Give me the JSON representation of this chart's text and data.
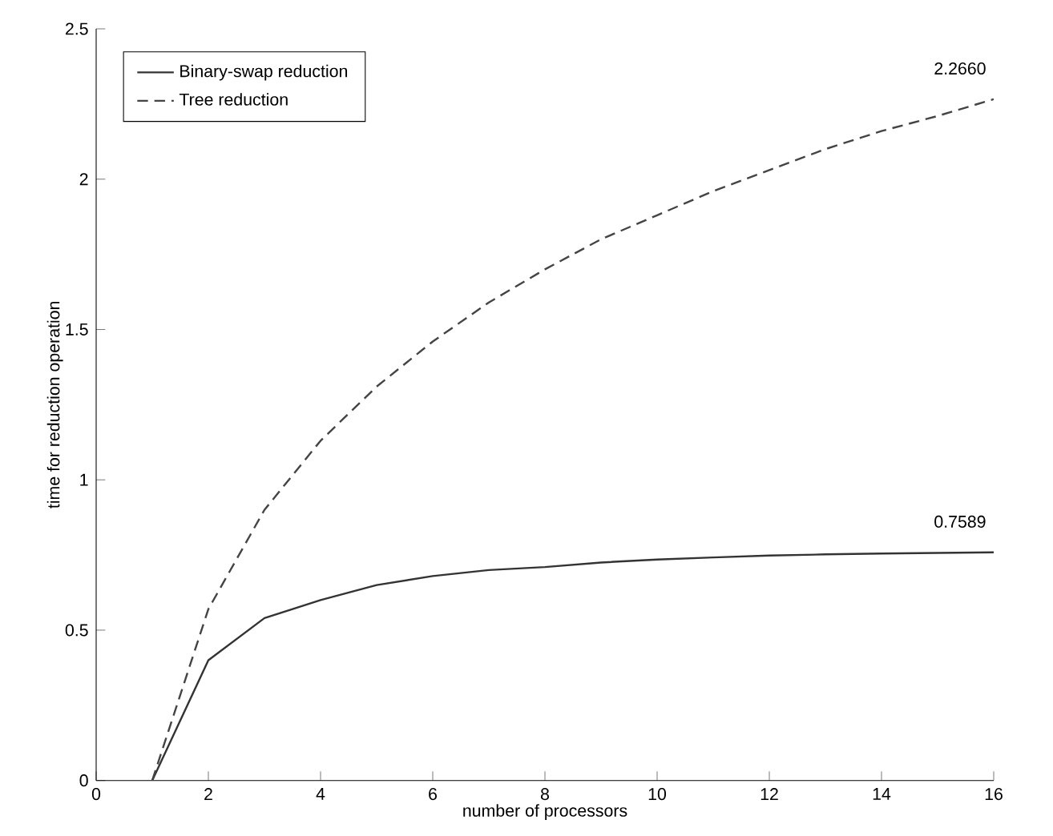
{
  "chart_data": {
    "type": "line",
    "xlabel": "number of processors",
    "ylabel": "time for reduction operation",
    "x": [
      1,
      2,
      3,
      4,
      5,
      6,
      7,
      8,
      9,
      10,
      11,
      12,
      13,
      14,
      15,
      16
    ],
    "series": [
      {
        "name": "Binary-swap reduction",
        "color": "#333333",
        "line_style": "solid",
        "values": [
          0,
          0.4,
          0.54,
          0.6,
          0.65,
          0.68,
          0.7,
          0.71,
          0.725,
          0.735,
          0.742,
          0.748,
          0.752,
          0.755,
          0.757,
          0.7589
        ]
      },
      {
        "name": "Tree reduction",
        "color": "#444444",
        "line_style": "dashed",
        "values": [
          0,
          0.57,
          0.9,
          1.13,
          1.31,
          1.46,
          1.59,
          1.7,
          1.8,
          1.88,
          1.96,
          2.03,
          2.1,
          2.16,
          2.21,
          2.266
        ]
      }
    ],
    "xlim": [
      0,
      16
    ],
    "xticks": [
      0,
      2,
      4,
      6,
      8,
      10,
      12,
      14,
      16
    ],
    "ylim": [
      0,
      2.5
    ],
    "yticks": [
      0,
      0.5,
      1,
      1.5,
      2,
      2.5
    ],
    "legend": "top left",
    "grid": false,
    "marker": "none",
    "annotations": [
      {
        "text": "2.2660",
        "x": 16,
        "y": 2.266
      },
      {
        "text": "0.7589",
        "x": 16,
        "y": 0.7589
      }
    ]
  }
}
